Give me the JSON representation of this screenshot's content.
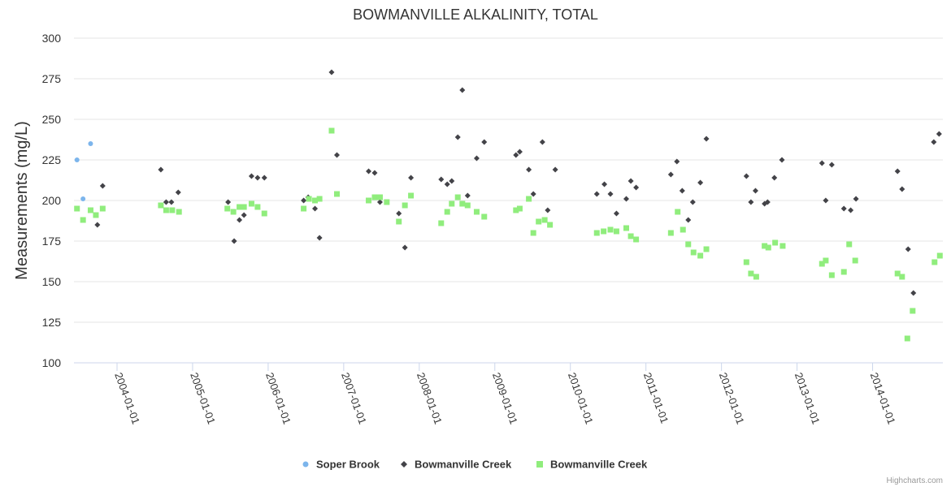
{
  "chart_data": {
    "type": "scatter",
    "title": "BOWMANVILLE ALKALINITY, TOTAL",
    "ylabel": "Measurements (mg/L)",
    "xlabel": "",
    "ylim": [
      100,
      300
    ],
    "xlim": [
      2003.43,
      2014.93
    ],
    "yticks": [
      "100",
      "125",
      "150",
      "175",
      "200",
      "225",
      "250",
      "275",
      "300"
    ],
    "xticks": [
      {
        "label": "2004-01-01",
        "x": 2004.0
      },
      {
        "label": "2005-01-01",
        "x": 2005.0
      },
      {
        "label": "2006-01-01",
        "x": 2006.0
      },
      {
        "label": "2007-01-01",
        "x": 2007.0
      },
      {
        "label": "2008-01-01",
        "x": 2008.0
      },
      {
        "label": "2009-01-01",
        "x": 2009.0
      },
      {
        "label": "2010-01-01",
        "x": 2010.0
      },
      {
        "label": "2011-01-01",
        "x": 2011.0
      },
      {
        "label": "2012-01-01",
        "x": 2012.0
      },
      {
        "label": "2013-01-01",
        "x": 2013.0
      },
      {
        "label": "2014-01-01",
        "x": 2014.0
      }
    ],
    "series": [
      {
        "name": "Soper Brook",
        "marker": "circle",
        "color": "#7cb5ec",
        "points": [
          [
            2003.47,
            225
          ],
          [
            2003.55,
            201
          ],
          [
            2003.65,
            235
          ]
        ]
      },
      {
        "name": "Bowmanville Creek",
        "marker": "diamond",
        "color": "#434348",
        "points": [
          [
            2003.74,
            185
          ],
          [
            2003.81,
            209
          ],
          [
            2004.58,
            219
          ],
          [
            2004.65,
            199
          ],
          [
            2004.72,
            199
          ],
          [
            2004.81,
            205
          ],
          [
            2005.47,
            199
          ],
          [
            2005.55,
            175
          ],
          [
            2005.62,
            188
          ],
          [
            2005.68,
            191
          ],
          [
            2005.78,
            215
          ],
          [
            2005.86,
            214
          ],
          [
            2005.95,
            214
          ],
          [
            2006.47,
            200
          ],
          [
            2006.53,
            202
          ],
          [
            2006.62,
            195
          ],
          [
            2006.68,
            177
          ],
          [
            2006.84,
            279
          ],
          [
            2006.91,
            228
          ],
          [
            2007.33,
            218
          ],
          [
            2007.41,
            217
          ],
          [
            2007.48,
            199
          ],
          [
            2007.73,
            192
          ],
          [
            2007.81,
            171
          ],
          [
            2007.89,
            214
          ],
          [
            2008.29,
            213
          ],
          [
            2008.37,
            210
          ],
          [
            2008.43,
            212
          ],
          [
            2008.51,
            239
          ],
          [
            2008.57,
            268
          ],
          [
            2008.64,
            203
          ],
          [
            2008.76,
            226
          ],
          [
            2008.86,
            236
          ],
          [
            2009.28,
            228
          ],
          [
            2009.33,
            230
          ],
          [
            2009.45,
            219
          ],
          [
            2009.51,
            204
          ],
          [
            2009.63,
            236
          ],
          [
            2009.7,
            194
          ],
          [
            2009.8,
            219
          ],
          [
            2010.35,
            204
          ],
          [
            2010.45,
            210
          ],
          [
            2010.53,
            204
          ],
          [
            2010.61,
            192
          ],
          [
            2010.74,
            201
          ],
          [
            2010.8,
            212
          ],
          [
            2010.87,
            208
          ],
          [
            2011.33,
            216
          ],
          [
            2011.41,
            224
          ],
          [
            2011.48,
            206
          ],
          [
            2011.56,
            188
          ],
          [
            2011.62,
            199
          ],
          [
            2011.72,
            211
          ],
          [
            2011.8,
            238
          ],
          [
            2012.33,
            215
          ],
          [
            2012.39,
            199
          ],
          [
            2012.45,
            206
          ],
          [
            2012.57,
            198
          ],
          [
            2012.61,
            199
          ],
          [
            2012.7,
            214
          ],
          [
            2012.8,
            225
          ],
          [
            2013.33,
            223
          ],
          [
            2013.38,
            200
          ],
          [
            2013.46,
            222
          ],
          [
            2013.62,
            195
          ],
          [
            2013.71,
            194
          ],
          [
            2013.78,
            201
          ],
          [
            2014.33,
            218
          ],
          [
            2014.39,
            207
          ],
          [
            2014.47,
            170
          ],
          [
            2014.54,
            143
          ],
          [
            2014.81,
            236
          ],
          [
            2014.88,
            241
          ]
        ]
      },
      {
        "name": "Bowmanville Creek",
        "marker": "square",
        "color": "#90ed7d",
        "points": [
          [
            2003.47,
            195
          ],
          [
            2003.55,
            188
          ],
          [
            2003.65,
            194
          ],
          [
            2003.72,
            191
          ],
          [
            2003.81,
            195
          ],
          [
            2004.58,
            197
          ],
          [
            2004.65,
            194
          ],
          [
            2004.73,
            194
          ],
          [
            2004.82,
            193
          ],
          [
            2005.46,
            195
          ],
          [
            2005.54,
            193
          ],
          [
            2005.62,
            196
          ],
          [
            2005.68,
            196
          ],
          [
            2005.78,
            198
          ],
          [
            2005.86,
            196
          ],
          [
            2005.95,
            192
          ],
          [
            2006.47,
            195
          ],
          [
            2006.54,
            201
          ],
          [
            2006.62,
            200
          ],
          [
            2006.68,
            201
          ],
          [
            2006.84,
            243
          ],
          [
            2006.91,
            204
          ],
          [
            2007.33,
            200
          ],
          [
            2007.41,
            202
          ],
          [
            2007.48,
            202
          ],
          [
            2007.57,
            199
          ],
          [
            2007.73,
            187
          ],
          [
            2007.81,
            197
          ],
          [
            2007.89,
            203
          ],
          [
            2008.29,
            186
          ],
          [
            2008.37,
            193
          ],
          [
            2008.43,
            198
          ],
          [
            2008.51,
            202
          ],
          [
            2008.57,
            198
          ],
          [
            2008.64,
            197
          ],
          [
            2008.76,
            193
          ],
          [
            2008.86,
            190
          ],
          [
            2009.28,
            194
          ],
          [
            2009.33,
            195
          ],
          [
            2009.45,
            201
          ],
          [
            2009.51,
            180
          ],
          [
            2009.58,
            187
          ],
          [
            2009.66,
            188
          ],
          [
            2009.73,
            185
          ],
          [
            2010.35,
            180
          ],
          [
            2010.44,
            181
          ],
          [
            2010.53,
            182
          ],
          [
            2010.61,
            181
          ],
          [
            2010.74,
            183
          ],
          [
            2010.8,
            178
          ],
          [
            2010.87,
            176
          ],
          [
            2011.33,
            180
          ],
          [
            2011.42,
            193
          ],
          [
            2011.49,
            182
          ],
          [
            2011.56,
            173
          ],
          [
            2011.63,
            168
          ],
          [
            2011.72,
            166
          ],
          [
            2011.8,
            170
          ],
          [
            2012.33,
            162
          ],
          [
            2012.39,
            155
          ],
          [
            2012.46,
            153
          ],
          [
            2012.57,
            172
          ],
          [
            2012.62,
            171
          ],
          [
            2012.71,
            174
          ],
          [
            2012.81,
            172
          ],
          [
            2013.33,
            161
          ],
          [
            2013.38,
            163
          ],
          [
            2013.46,
            154
          ],
          [
            2013.62,
            156
          ],
          [
            2013.69,
            173
          ],
          [
            2013.77,
            163
          ],
          [
            2014.33,
            155
          ],
          [
            2014.39,
            153
          ],
          [
            2014.46,
            115
          ],
          [
            2014.53,
            132
          ],
          [
            2014.82,
            162
          ],
          [
            2014.89,
            166
          ]
        ]
      }
    ],
    "legend": "bottom-center"
  },
  "credits": "Highcharts.com"
}
